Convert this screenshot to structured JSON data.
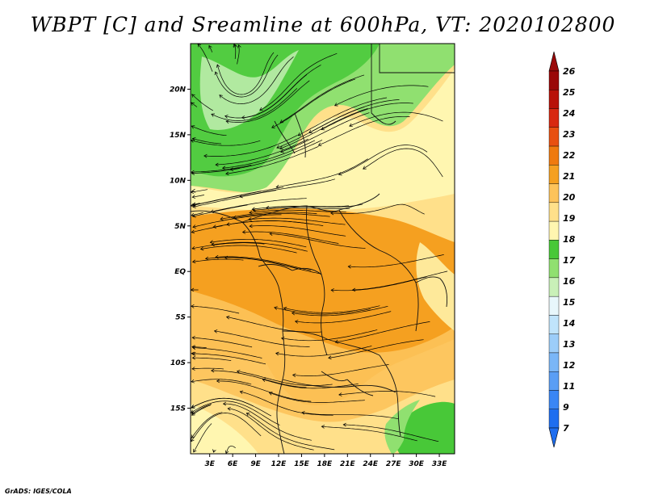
{
  "title": "WBPT [C] and Sreamline at 600hPa, VT: 2020102800",
  "credit": "GrADS: IGES/COLA",
  "axes": {
    "lat_labels": [
      "20N",
      "15N",
      "10N",
      "5N",
      "EQ",
      "5S",
      "10S",
      "15S"
    ],
    "lat_values": [
      20,
      15,
      10,
      5,
      0,
      -5,
      -10,
      -15
    ],
    "lon_labels": [
      "3E",
      "6E",
      "9E",
      "12E",
      "15E",
      "18E",
      "21E",
      "24E",
      "27E",
      "30E",
      "33E"
    ],
    "lon_values": [
      3,
      6,
      9,
      12,
      15,
      18,
      21,
      24,
      27,
      30,
      33
    ],
    "lon_range": [
      0.5,
      35
    ],
    "lat_range": [
      -20,
      25
    ]
  },
  "colorbar": {
    "labels": [
      "7",
      "9",
      "11",
      "12",
      "13",
      "14",
      "15",
      "16",
      "17",
      "18",
      "19",
      "20",
      "21",
      "22",
      "23",
      "24",
      "25",
      "26"
    ],
    "colors": [
      "#1e6ef0",
      "#3a86f5",
      "#5a9ef5",
      "#7ab6f7",
      "#9ccdf9",
      "#c0e4fb",
      "#e8f7fb",
      "#c9f0b8",
      "#90e070",
      "#48c838",
      "#fff6b0",
      "#ffe08a",
      "#fdc35a",
      "#f5a020",
      "#ef7a0e",
      "#e85010",
      "#d82810",
      "#b81208",
      "#9a0808"
    ]
  }
}
